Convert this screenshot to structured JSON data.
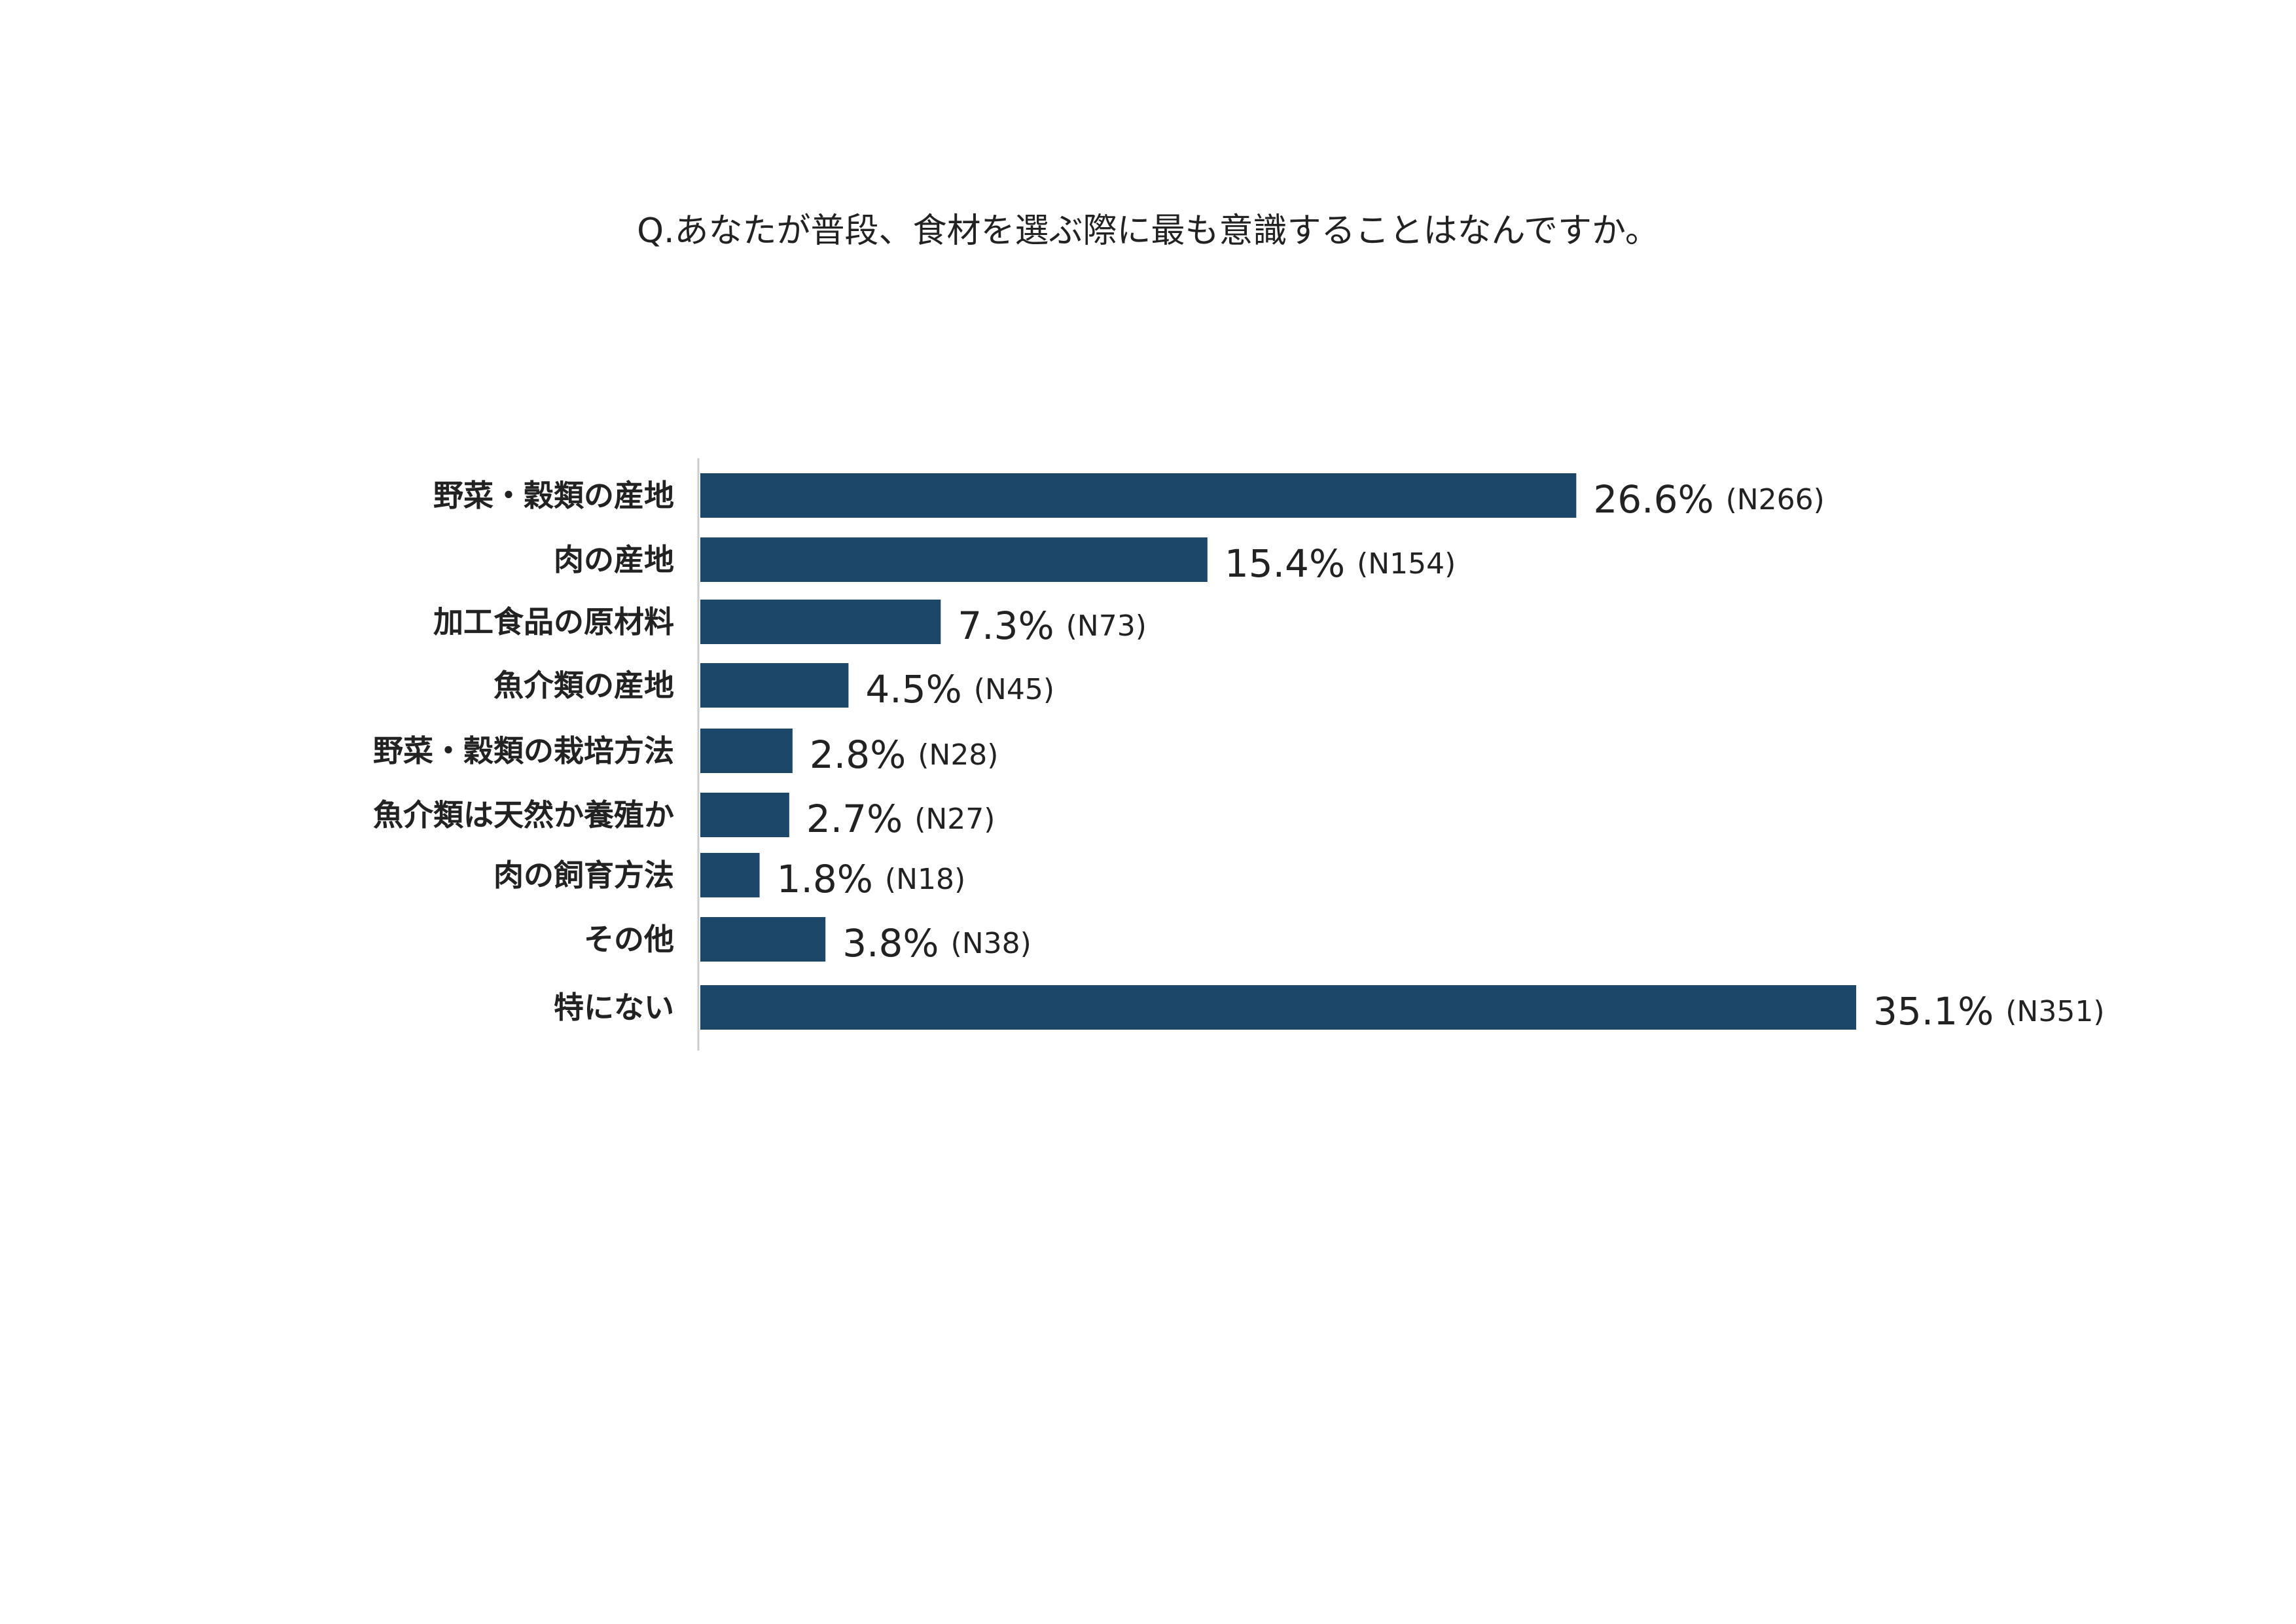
{
  "chart_data": {
    "type": "bar",
    "orientation": "horizontal",
    "title": "Q.あなたが普段、食材を選ぶ際に最も意識することはなんですか。",
    "categories": [
      "野菜・穀類の産地",
      "肉の産地",
      "加工食品の原材料",
      "魚介類の産地",
      "野菜・穀類の栽培方法",
      "魚介類は天然か養殖か",
      "肉の飼育方法",
      "その他",
      "特にない"
    ],
    "values": [
      26.6,
      15.4,
      7.3,
      4.5,
      2.8,
      2.7,
      1.8,
      3.8,
      35.1
    ],
    "value_labels": [
      "26.6%",
      "15.4%",
      "7.3%",
      "4.5%",
      "2.8%",
      "2.7%",
      "1.8%",
      "3.8%",
      "35.1%"
    ],
    "counts": [
      "(N266)",
      "(N154)",
      "(N73)",
      "(N45)",
      "(N28)",
      "(N27)",
      "(N18)",
      "(N38)",
      "(N351)"
    ],
    "unit": "%",
    "xlim": [
      0,
      35.1
    ],
    "grid": false,
    "legend": "none",
    "bar_color": "#1c4769",
    "axis_color": "#cccccc"
  }
}
